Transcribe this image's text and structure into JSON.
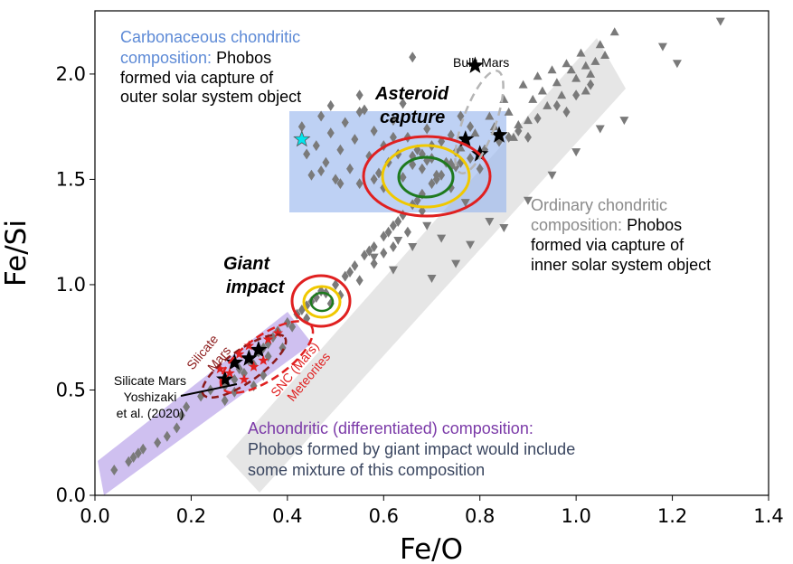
{
  "chart_data": {
    "type": "scatter",
    "xlabel": "Fe/O",
    "ylabel": "Fe/Si",
    "xlim": [
      0.0,
      1.4
    ],
    "ylim": [
      0.0,
      2.3
    ],
    "xticks": [
      "0.0",
      "0.2",
      "0.4",
      "0.6",
      "0.8",
      "1.0",
      "1.2",
      "1.4"
    ],
    "yticks": [
      "0.0",
      "0.5",
      "1.0",
      "1.5",
      "2.0"
    ],
    "grid": false,
    "colors": {
      "points": "#7a7a7a",
      "carbonaceous": "#6f8fd8",
      "ordinary": "#8a8a8a",
      "achondritic": "#7b3aa8",
      "impact_red": "#e02020",
      "yellow": "#f0c800",
      "green": "#1e7a1e",
      "dark_red": "#8b1a1a",
      "snc_red": "#e02020"
    },
    "regions": [
      {
        "name": "carbonaceous",
        "x": [
          0.4,
          0.85
        ],
        "y": [
          1.4,
          1.9
        ],
        "color": "#9bb8ee"
      },
      {
        "name": "ordinary",
        "color": "#dddddd"
      },
      {
        "name": "achondritic",
        "color": "#c3b0ec"
      }
    ],
    "series": [
      {
        "marker": "diamond",
        "points": [
          [
            0.43,
            1.75
          ],
          [
            0.44,
            1.62
          ],
          [
            0.45,
            1.52
          ],
          [
            0.46,
            1.66
          ],
          [
            0.47,
            1.8
          ],
          [
            0.48,
            1.58
          ],
          [
            0.49,
            1.72
          ],
          [
            0.5,
            1.5
          ],
          [
            0.51,
            1.64
          ],
          [
            0.52,
            1.77
          ],
          [
            0.53,
            1.55
          ],
          [
            0.54,
            1.69
          ],
          [
            0.55,
            1.48
          ],
          [
            0.56,
            1.83
          ],
          [
            0.57,
            1.61
          ],
          [
            0.58,
            1.73
          ],
          [
            0.59,
            1.53
          ],
          [
            0.6,
            1.66
          ],
          [
            0.61,
            1.58
          ],
          [
            0.62,
            1.78
          ],
          [
            0.63,
            1.62
          ],
          [
            0.64,
            1.51
          ],
          [
            0.65,
            1.7
          ],
          [
            0.66,
            1.57
          ],
          [
            0.67,
            1.64
          ],
          [
            0.68,
            1.55
          ],
          [
            0.69,
            1.74
          ],
          [
            0.7,
            1.6
          ],
          [
            0.71,
            1.52
          ],
          [
            0.72,
            1.68
          ],
          [
            0.73,
            1.58
          ],
          [
            0.74,
            1.71
          ],
          [
            0.75,
            1.63
          ],
          [
            0.76,
            1.8
          ],
          [
            0.78,
            1.75
          ],
          [
            0.47,
            1.54
          ],
          [
            0.51,
            1.48
          ],
          [
            0.55,
            1.82
          ],
          [
            0.6,
            1.46
          ],
          [
            0.64,
            1.86
          ],
          [
            0.66,
            2.08
          ],
          [
            0.55,
            1.9
          ],
          [
            0.49,
            1.85
          ],
          [
            0.58,
            1.5
          ],
          [
            0.62,
            1.7
          ],
          [
            0.7,
            1.66
          ],
          [
            0.74,
            1.56
          ],
          [
            0.68,
            1.62
          ],
          [
            0.66,
            1.61
          ],
          [
            0.69,
            1.59
          ]
        ]
      },
      {
        "marker": "diamond",
        "points": [
          [
            0.04,
            0.12
          ],
          [
            0.07,
            0.16
          ],
          [
            0.08,
            0.18
          ],
          [
            0.09,
            0.2
          ],
          [
            0.1,
            0.22
          ],
          [
            0.13,
            0.25
          ],
          [
            0.15,
            0.28
          ],
          [
            0.17,
            0.32
          ],
          [
            0.18,
            0.38
          ],
          [
            0.19,
            0.42
          ],
          [
            0.22,
            0.47
          ],
          [
            0.24,
            0.5
          ],
          [
            0.27,
            0.52
          ],
          [
            0.29,
            0.55
          ],
          [
            0.31,
            0.58
          ],
          [
            0.33,
            0.62
          ],
          [
            0.34,
            0.68
          ],
          [
            0.36,
            0.72
          ],
          [
            0.38,
            0.78
          ],
          [
            0.4,
            0.82
          ],
          [
            0.42,
            0.86
          ],
          [
            0.44,
            0.9
          ],
          [
            0.46,
            0.94
          ],
          [
            0.48,
            0.96
          ],
          [
            0.5,
            1.0
          ],
          [
            0.52,
            1.04
          ],
          [
            0.54,
            1.09
          ],
          [
            0.56,
            1.14
          ],
          [
            0.58,
            1.18
          ],
          [
            0.6,
            1.23
          ],
          [
            0.62,
            1.28
          ],
          [
            0.64,
            1.33
          ],
          [
            0.66,
            1.38
          ],
          [
            0.68,
            1.43
          ],
          [
            0.7,
            1.48
          ],
          [
            0.72,
            1.52
          ],
          [
            0.75,
            1.56
          ],
          [
            0.78,
            1.6
          ],
          [
            0.81,
            1.64
          ],
          [
            0.84,
            1.68
          ],
          [
            0.88,
            1.73
          ],
          [
            0.92,
            1.79
          ],
          [
            0.96,
            1.85
          ],
          [
            1.0,
            1.9
          ],
          [
            1.03,
            1.95
          ],
          [
            0.3,
            0.6
          ],
          [
            0.32,
            0.64
          ],
          [
            0.35,
            0.7
          ],
          [
            0.37,
            0.75
          ],
          [
            0.43,
            0.88
          ],
          [
            0.45,
            0.92
          ],
          [
            0.47,
            0.97
          ],
          [
            0.53,
            1.06
          ],
          [
            0.57,
            1.16
          ],
          [
            0.61,
            1.25
          ],
          [
            0.63,
            1.3
          ],
          [
            0.67,
            1.4
          ],
          [
            0.71,
            1.5
          ],
          [
            0.76,
            1.58
          ],
          [
            0.86,
            1.7
          ],
          [
            0.27,
            0.45
          ],
          [
            0.29,
            0.49
          ],
          [
            0.33,
            0.52
          ],
          [
            0.35,
            0.57
          ],
          [
            0.36,
            0.66
          ],
          [
            0.39,
            0.7
          ],
          [
            0.41,
            0.8
          ],
          [
            0.44,
            0.84
          ],
          [
            0.49,
            0.91
          ],
          [
            0.51,
            0.95
          ],
          [
            0.55,
            1.02
          ],
          [
            0.58,
            1.1
          ],
          [
            0.6,
            1.15
          ],
          [
            0.62,
            1.18
          ],
          [
            0.65,
            1.25
          ],
          [
            0.68,
            1.35
          ],
          [
            0.74,
            1.46
          ],
          [
            0.8,
            1.55
          ],
          [
            0.9,
            1.7
          ],
          [
            0.98,
            1.82
          ]
        ]
      },
      {
        "marker": "triangle-up",
        "points": [
          [
            0.79,
            1.72
          ],
          [
            0.82,
            1.8
          ],
          [
            0.85,
            1.88
          ],
          [
            0.87,
            1.7
          ],
          [
            0.89,
            1.95
          ],
          [
            0.9,
            1.78
          ],
          [
            0.92,
            1.99
          ],
          [
            0.94,
            1.85
          ],
          [
            0.95,
            2.02
          ],
          [
            0.97,
            1.9
          ],
          [
            0.98,
            2.05
          ],
          [
            1.0,
            1.98
          ],
          [
            1.01,
            2.1
          ],
          [
            1.02,
            1.92
          ],
          [
            1.03,
            2.0
          ],
          [
            1.04,
            2.06
          ],
          [
            1.05,
            2.14
          ],
          [
            1.06,
            2.09
          ],
          [
            1.08,
            2.2
          ],
          [
            0.8,
            1.63
          ],
          [
            0.83,
            1.75
          ],
          [
            0.86,
            1.82
          ],
          [
            0.91,
            1.88
          ],
          [
            0.96,
            1.96
          ],
          [
            0.74,
            1.58
          ],
          [
            0.76,
            1.65
          ],
          [
            0.88,
            1.76
          ],
          [
            0.99,
            2.02
          ],
          [
            1.02,
            2.04
          ],
          [
            0.93,
            1.92
          ]
        ]
      },
      {
        "marker": "triangle-down",
        "points": [
          [
            0.58,
            1.13
          ],
          [
            0.62,
            1.07
          ],
          [
            0.66,
            1.18
          ],
          [
            0.7,
            1.03
          ],
          [
            0.72,
            1.22
          ],
          [
            0.75,
            1.1
          ],
          [
            0.78,
            1.19
          ],
          [
            0.82,
            1.3
          ],
          [
            0.85,
            1.27
          ],
          [
            0.9,
            1.4
          ],
          [
            0.95,
            1.52
          ],
          [
            1.0,
            1.63
          ],
          [
            1.05,
            1.74
          ],
          [
            1.1,
            1.78
          ],
          [
            1.18,
            2.13
          ],
          [
            1.21,
            2.05
          ],
          [
            1.3,
            2.25
          ],
          [
            0.77,
            1.39
          ],
          [
            0.63,
            1.21
          ],
          [
            0.69,
            1.28
          ]
        ]
      },
      {
        "marker": "star",
        "color": "#000000",
        "points": [
          [
            0.79,
            2.04
          ],
          [
            0.77,
            1.69
          ],
          [
            0.84,
            1.71
          ],
          [
            0.8,
            1.62
          ],
          [
            0.27,
            0.55
          ],
          [
            0.29,
            0.63
          ],
          [
            0.32,
            0.65
          ],
          [
            0.34,
            0.69
          ]
        ]
      },
      {
        "marker": "star",
        "color": "#e02020",
        "points": [
          [
            0.26,
            0.6
          ],
          [
            0.28,
            0.58
          ],
          [
            0.3,
            0.67
          ],
          [
            0.32,
            0.71
          ],
          [
            0.33,
            0.61
          ],
          [
            0.36,
            0.74
          ],
          [
            0.38,
            0.77
          ],
          [
            0.31,
            0.55
          ],
          [
            0.35,
            0.64
          ]
        ]
      },
      {
        "marker": "star",
        "color": "#00e5ee",
        "points": [
          [
            0.43,
            1.69
          ]
        ]
      }
    ],
    "annotations": {
      "carbonaceous_title": "Carbonaceous chondritic",
      "carbonaceous_prefix": "composition: ",
      "carbonaceous_rest1": "Phobos",
      "carbonaceous_rest2": "formed via capture of",
      "carbonaceous_rest3": "outer solar system object",
      "bulk_mars": "Bulk Mars",
      "asteroid": "Asteroid",
      "capture": "capture",
      "ordinary_title": "Ordinary chondritic",
      "ordinary_prefix": "composition: ",
      "ordinary_rest1": "Phobos",
      "ordinary_rest2": "formed via capture of",
      "ordinary_rest3": "inner solar system object",
      "giant": "Giant",
      "impact": "impact",
      "silicate_mars1": "Silicate",
      "silicate_mars2": "Mars",
      "snc1": "SNC (Mars)",
      "snc2": "Meteorites",
      "yoshizaki1": "Silicate Mars",
      "yoshizaki2": "Yoshizaki",
      "yoshizaki3": "et al. (2020)",
      "achondritic_title": "Achondritic (differentiated) composition:",
      "achondritic_line1": "Phobos formed by giant impact would include",
      "achondritic_line2": "some mixture of this composition"
    }
  }
}
